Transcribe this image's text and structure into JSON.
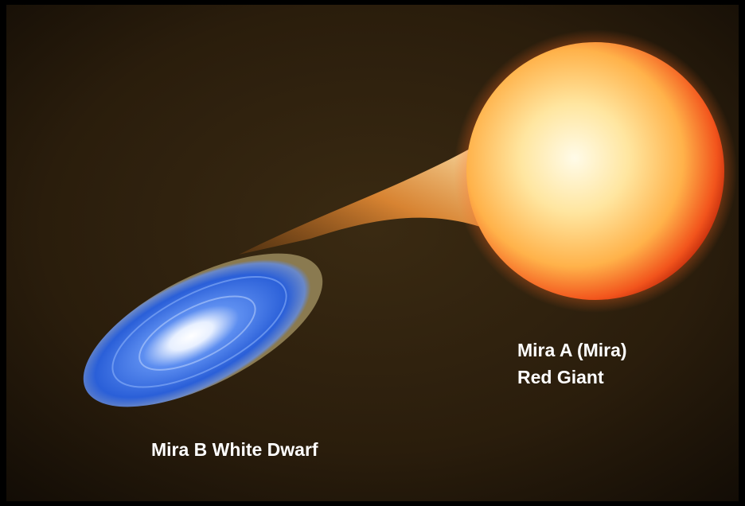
{
  "labels": {
    "mira_a": [
      "Mira A (Mira)",
      "Red Giant"
    ],
    "mira_b": "Mira B White Dwarf"
  }
}
